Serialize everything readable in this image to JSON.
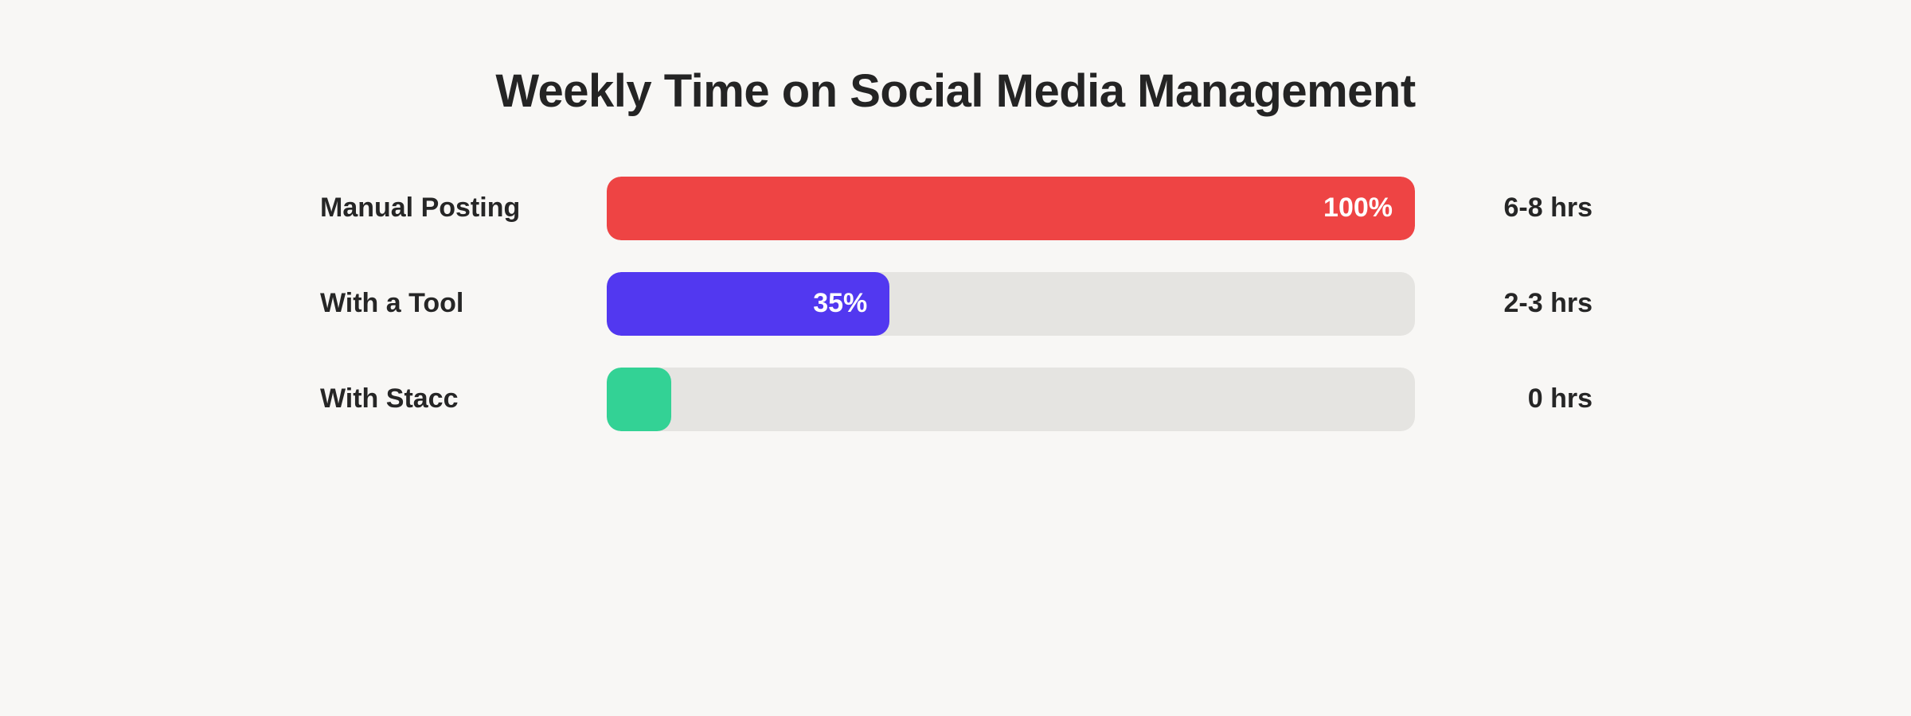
{
  "page": {
    "background_color": "#f8f7f5",
    "track_color": "#e5e4e1",
    "text_color": "#262626"
  },
  "chart_data": {
    "type": "bar",
    "orientation": "horizontal",
    "title": "Weekly Time on Social Media Management",
    "categories": [
      "Manual Posting",
      "With a Tool",
      "With Stacc"
    ],
    "values": [
      100,
      35,
      8
    ],
    "value_labels": [
      "100%",
      "35%",
      ""
    ],
    "secondary_labels": [
      "6-8 hrs",
      "2-3 hrs",
      "0 hrs"
    ],
    "colors": [
      "#ee4444",
      "#5238f0",
      "#33d295"
    ],
    "xlim": [
      0,
      100
    ],
    "grid": false,
    "legend": false
  }
}
